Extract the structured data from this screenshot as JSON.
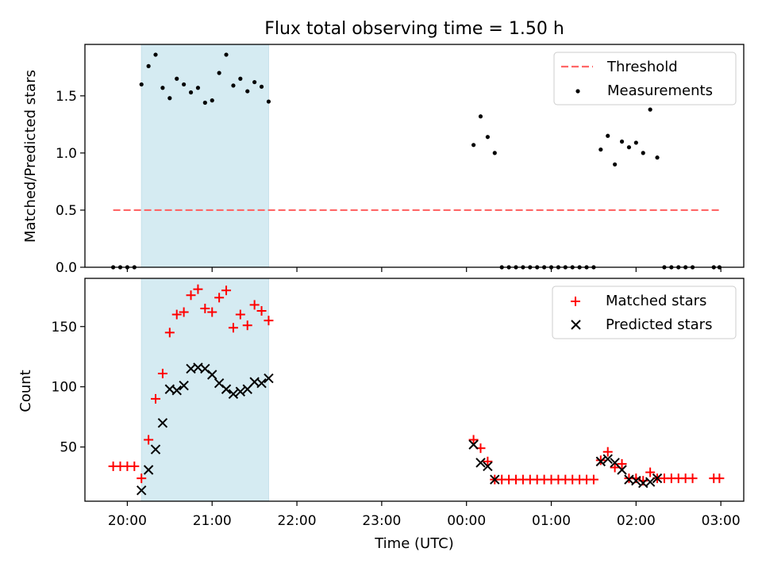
{
  "chart_data": [
    {
      "type": "scatter",
      "title": "Flux total observing time = 1.50 h",
      "ylabel": "Matched/Predicted stars",
      "ylim": [
        0,
        1.95
      ],
      "yticks": [
        "0.0",
        "0.5",
        "1.0",
        "1.5"
      ],
      "ytick_values": [
        0.0,
        0.5,
        1.0,
        1.5
      ],
      "highlight_span": {
        "from": "20:10",
        "to": "21:40",
        "color": "#add8e6"
      },
      "threshold": {
        "name": "Threshold",
        "value": 0.5,
        "from": "19:50",
        "to": "02:59",
        "color": "#ff6666",
        "style": "dashed"
      },
      "legend": "top-right",
      "series": [
        {
          "name": "Measurements",
          "color": "#000000",
          "marker": "dot",
          "points": [
            [
              "19:50",
              0
            ],
            [
              "19:55",
              0
            ],
            [
              "20:00",
              0
            ],
            [
              "20:05",
              0
            ],
            [
              "20:10",
              1.6
            ],
            [
              "20:15",
              1.76
            ],
            [
              "20:20",
              1.86
            ],
            [
              "20:25",
              1.57
            ],
            [
              "20:30",
              1.48
            ],
            [
              "20:35",
              1.65
            ],
            [
              "20:40",
              1.6
            ],
            [
              "20:45",
              1.53
            ],
            [
              "20:50",
              1.57
            ],
            [
              "20:55",
              1.44
            ],
            [
              "21:00",
              1.46
            ],
            [
              "21:05",
              1.7
            ],
            [
              "21:10",
              1.86
            ],
            [
              "21:15",
              1.59
            ],
            [
              "21:20",
              1.65
            ],
            [
              "21:25",
              1.54
            ],
            [
              "21:30",
              1.62
            ],
            [
              "21:35",
              1.58
            ],
            [
              "21:40",
              1.45
            ],
            [
              "00:05",
              1.07
            ],
            [
              "00:10",
              1.32
            ],
            [
              "00:15",
              1.14
            ],
            [
              "00:20",
              1.0
            ],
            [
              "00:25",
              0
            ],
            [
              "00:30",
              0
            ],
            [
              "00:35",
              0
            ],
            [
              "00:40",
              0
            ],
            [
              "00:45",
              0
            ],
            [
              "00:50",
              0
            ],
            [
              "00:55",
              0
            ],
            [
              "01:00",
              0
            ],
            [
              "01:05",
              0
            ],
            [
              "01:10",
              0
            ],
            [
              "01:15",
              0
            ],
            [
              "01:20",
              0
            ],
            [
              "01:25",
              0
            ],
            [
              "01:30",
              0
            ],
            [
              "01:35",
              1.03
            ],
            [
              "01:40",
              1.15
            ],
            [
              "01:45",
              0.9
            ],
            [
              "01:50",
              1.1
            ],
            [
              "01:55",
              1.05
            ],
            [
              "02:00",
              1.09
            ],
            [
              "02:05",
              1.0
            ],
            [
              "02:10",
              1.38
            ],
            [
              "02:15",
              0.96
            ],
            [
              "02:20",
              0
            ],
            [
              "02:25",
              0
            ],
            [
              "02:30",
              0
            ],
            [
              "02:35",
              0
            ],
            [
              "02:40",
              0
            ],
            [
              "02:55",
              0
            ],
            [
              "02:59",
              0
            ]
          ]
        }
      ]
    },
    {
      "type": "scatter",
      "xlabel": "Time (UTC)",
      "ylabel": "Count",
      "ylim": [
        5,
        190
      ],
      "yticks": [
        "50",
        "100",
        "150"
      ],
      "ytick_values": [
        50,
        100,
        150
      ],
      "xticks": [
        "20:00",
        "21:00",
        "22:00",
        "23:00",
        "00:00",
        "01:00",
        "02:00",
        "03:00"
      ],
      "highlight_span": {
        "from": "20:10",
        "to": "21:40",
        "color": "#add8e6"
      },
      "legend": "top-right",
      "series": [
        {
          "name": "Matched stars",
          "color": "#ff0000",
          "marker": "plus",
          "points": [
            [
              "19:50",
              34
            ],
            [
              "19:55",
              34
            ],
            [
              "20:00",
              34
            ],
            [
              "20:05",
              34
            ],
            [
              "20:10",
              24
            ],
            [
              "20:15",
              56
            ],
            [
              "20:20",
              90
            ],
            [
              "20:25",
              111
            ],
            [
              "20:30",
              145
            ],
            [
              "20:35",
              160
            ],
            [
              "20:40",
              162
            ],
            [
              "20:45",
              176
            ],
            [
              "20:50",
              181
            ],
            [
              "20:55",
              165
            ],
            [
              "21:00",
              162
            ],
            [
              "21:05",
              174
            ],
            [
              "21:10",
              180
            ],
            [
              "21:15",
              149
            ],
            [
              "21:20",
              160
            ],
            [
              "21:25",
              151
            ],
            [
              "21:30",
              168
            ],
            [
              "21:35",
              163
            ],
            [
              "21:40",
              155
            ],
            [
              "00:05",
              56
            ],
            [
              "00:10",
              49
            ],
            [
              "00:15",
              38
            ],
            [
              "00:20",
              23
            ],
            [
              "00:25",
              23
            ],
            [
              "00:30",
              23
            ],
            [
              "00:35",
              23
            ],
            [
              "00:40",
              23
            ],
            [
              "00:45",
              23
            ],
            [
              "00:50",
              23
            ],
            [
              "00:55",
              23
            ],
            [
              "01:00",
              23
            ],
            [
              "01:05",
              23
            ],
            [
              "01:10",
              23
            ],
            [
              "01:15",
              23
            ],
            [
              "01:20",
              23
            ],
            [
              "01:25",
              23
            ],
            [
              "01:30",
              23
            ],
            [
              "01:35",
              39
            ],
            [
              "01:40",
              46
            ],
            [
              "01:45",
              33
            ],
            [
              "01:50",
              36
            ],
            [
              "01:55",
              24
            ],
            [
              "02:00",
              24
            ],
            [
              "02:05",
              22
            ],
            [
              "02:10",
              29
            ],
            [
              "02:15",
              24
            ],
            [
              "02:20",
              24
            ],
            [
              "02:25",
              24
            ],
            [
              "02:30",
              24
            ],
            [
              "02:35",
              24
            ],
            [
              "02:40",
              24
            ],
            [
              "02:55",
              24
            ],
            [
              "02:59",
              24
            ]
          ]
        },
        {
          "name": "Predicted stars",
          "color": "#000000",
          "marker": "x",
          "points": [
            [
              "20:10",
              14
            ],
            [
              "20:15",
              31
            ],
            [
              "20:20",
              48
            ],
            [
              "20:25",
              70
            ],
            [
              "20:30",
              98
            ],
            [
              "20:35",
              97
            ],
            [
              "20:40",
              101
            ],
            [
              "20:45",
              115
            ],
            [
              "20:50",
              116
            ],
            [
              "20:55",
              115
            ],
            [
              "21:00",
              110
            ],
            [
              "21:05",
              103
            ],
            [
              "21:10",
              98
            ],
            [
              "21:15",
              94
            ],
            [
              "21:20",
              96
            ],
            [
              "21:25",
              98
            ],
            [
              "21:30",
              104
            ],
            [
              "21:35",
              103
            ],
            [
              "21:40",
              107
            ],
            [
              "00:05",
              52
            ],
            [
              "00:10",
              37
            ],
            [
              "00:15",
              34
            ],
            [
              "00:20",
              23
            ],
            [
              "01:35",
              38
            ],
            [
              "01:40",
              40
            ],
            [
              "01:45",
              37
            ],
            [
              "01:50",
              31
            ],
            [
              "01:55",
              23
            ],
            [
              "02:00",
              22
            ],
            [
              "02:05",
              20
            ],
            [
              "02:10",
              21
            ],
            [
              "02:15",
              24
            ]
          ]
        }
      ]
    }
  ]
}
